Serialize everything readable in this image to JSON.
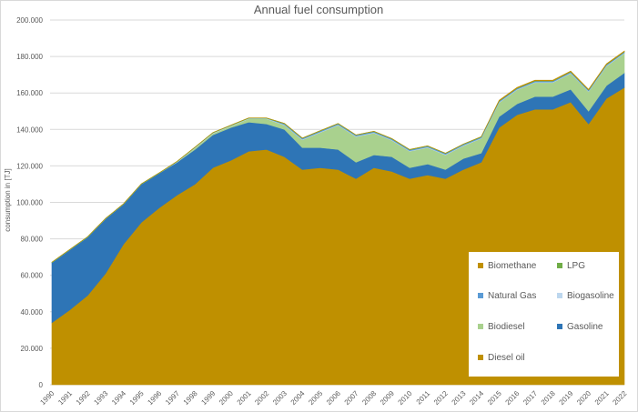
{
  "chart_data": {
    "type": "area",
    "stacked": true,
    "title": "Annual fuel consumption",
    "xlabel": "",
    "ylabel": "consumption in [TJ]",
    "ylim": [
      0,
      200000
    ],
    "yticks": [
      "0",
      "20.000",
      "40.000",
      "60.000",
      "80.000",
      "100.000",
      "120.000",
      "140.000",
      "160.000",
      "180.000",
      "200.000"
    ],
    "grid": true,
    "legend_position": "bottom-right",
    "categories": [
      "1990",
      "1991",
      "1992",
      "1993",
      "1994",
      "1995",
      "1996",
      "1997",
      "1998",
      "1999",
      "2000",
      "2001",
      "2002",
      "2003",
      "2004",
      "2005",
      "2006",
      "2007",
      "2008",
      "2009",
      "2010",
      "2011",
      "2012",
      "2013",
      "2014",
      "2015",
      "2016",
      "2017",
      "2018",
      "2019",
      "2020",
      "2021",
      "2022"
    ],
    "series": [
      {
        "name": "Diesel oil",
        "color": "#BF9000",
        "values": [
          34000,
          41000,
          49000,
          61000,
          77000,
          89000,
          97000,
          104000,
          110000,
          119000,
          123000,
          128000,
          129000,
          125000,
          118000,
          119000,
          118000,
          113000,
          119000,
          117000,
          113000,
          115000,
          113000,
          118000,
          122000,
          141000,
          148000,
          151000,
          151000,
          155000,
          143000,
          157000,
          163000
        ]
      },
      {
        "name": "Gasoline",
        "color": "#2E75B6",
        "values": [
          33000,
          33000,
          32000,
          30000,
          22000,
          21000,
          19000,
          18000,
          19000,
          18000,
          18000,
          16000,
          14000,
          15000,
          12000,
          11000,
          11000,
          9000,
          7000,
          8000,
          6000,
          6000,
          5000,
          6000,
          5000,
          6000,
          6000,
          7000,
          7000,
          7000,
          7000,
          7000,
          8000
        ]
      },
      {
        "name": "Biodiesel",
        "color": "#A9D18E",
        "values": [
          0,
          0,
          0,
          0,
          0,
          0,
          0,
          0,
          800,
          800,
          800,
          1800,
          2800,
          2300,
          4300,
          8300,
          13300,
          14000,
          12000,
          9000,
          9000,
          9000,
          8000,
          7000,
          8000,
          7700,
          7700,
          7700,
          7700,
          8700,
          10700,
          10700,
          10700
        ]
      },
      {
        "name": "Biogasoline",
        "color": "#BDD7EE",
        "values": [
          0,
          0,
          0,
          0,
          0,
          0,
          0,
          300,
          300,
          300,
          300,
          300,
          300,
          300,
          300,
          300,
          300,
          300,
          300,
          300,
          300,
          300,
          300,
          300,
          300,
          300,
          300,
          300,
          300,
          300,
          300,
          300,
          300
        ]
      },
      {
        "name": "Natural Gas",
        "color": "#5B9BD5",
        "values": [
          0,
          0,
          0,
          0,
          0,
          0,
          0,
          0,
          0,
          0,
          0,
          0,
          0,
          500,
          500,
          500,
          500,
          500,
          500,
          500,
          500,
          500,
          500,
          500,
          500,
          500,
          500,
          500,
          500,
          500,
          500,
          500,
          500
        ]
      },
      {
        "name": "LPG",
        "color": "#70AD47",
        "values": [
          200,
          200,
          200,
          200,
          200,
          200,
          200,
          200,
          200,
          200,
          200,
          200,
          200,
          200,
          200,
          200,
          200,
          200,
          200,
          200,
          200,
          200,
          200,
          200,
          200,
          200,
          200,
          200,
          200,
          200,
          200,
          200,
          200
        ]
      },
      {
        "name": "Biomethane",
        "color": "#C09000",
        "values": [
          0,
          0,
          0,
          0,
          0,
          0,
          0,
          0,
          0,
          0,
          0,
          0,
          0,
          0,
          0,
          0,
          0,
          0,
          0,
          0,
          0,
          0,
          0,
          0,
          0,
          300,
          300,
          300,
          300,
          300,
          300,
          300,
          300
        ]
      }
    ],
    "legend_order": [
      "Biomethane",
      "LPG",
      "Natural Gas",
      "Biogasoline",
      "Biodiesel",
      "Gasoline",
      "Diesel oil"
    ]
  }
}
